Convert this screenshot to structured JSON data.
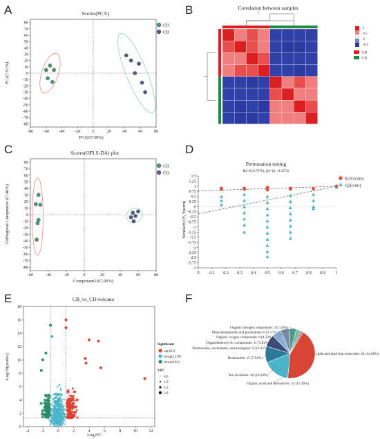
{
  "panel_labels": [
    "A",
    "B",
    "C",
    "D",
    "E",
    "F"
  ],
  "colors": {
    "cd": "#4a9a7a",
    "cb": "#545a8a",
    "ellipse_cd": "#e88a80",
    "ellipse_cb": "#8fd6c4",
    "r2y": "#e0533a",
    "q2": "#4cb6c8",
    "heat_low": "#2a3aa0",
    "heat_high": "#e62b2b",
    "volcano_up": "#d94534",
    "volcano_nosig": "#4ab4c8",
    "volcano_down": "#2a8a6a"
  },
  "chart_data": [
    {
      "type": "scatter",
      "panel": "A",
      "title": "Scores(PCA)",
      "xlabel": "PC1(67.50%)",
      "ylabel": "PC2(7.91%)",
      "xlim": [
        -80,
        80
      ],
      "ylim": [
        -85,
        85
      ],
      "xticks": [
        -80,
        -60,
        -40,
        -20,
        0,
        20,
        40,
        60,
        80
      ],
      "yticks": [
        -80,
        -70,
        -60,
        -50,
        -40,
        -30,
        -20,
        -10,
        0,
        10,
        20,
        30,
        40,
        50,
        60,
        70,
        80
      ],
      "series": [
        {
          "name": "CD",
          "color": "#4a9a7a",
          "points": [
            [
              -60,
              5
            ],
            [
              -55,
              12
            ],
            [
              -50,
              5
            ],
            [
              -58,
              -8
            ],
            [
              -52,
              -14
            ]
          ]
        },
        {
          "name": "CB",
          "color": "#545a8a",
          "points": [
            [
              42,
              28
            ],
            [
              48,
              20
            ],
            [
              58,
              15
            ],
            [
              53,
              0
            ],
            [
              62,
              -15
            ],
            [
              66,
              -30
            ]
          ]
        }
      ]
    },
    {
      "type": "heatmap",
      "panel": "B",
      "title": "Correlation between samples",
      "colorbar_ticks": [
        "1",
        "0.5",
        "0",
        "-0.5"
      ],
      "groups": [
        {
          "name": "CD",
          "color": "#e02020"
        },
        {
          "name": "CB",
          "color": "#208a40"
        }
      ]
    },
    {
      "type": "scatter",
      "panel": "C",
      "title": "Scores(OPLS-DA) plot",
      "xlabel": "Component1(67.00%)",
      "ylabel": "Orthogonal Component1(7.40%)",
      "xlim": [
        -60,
        80
      ],
      "ylim": [
        -85,
        85
      ],
      "xticks": [
        -60,
        -40,
        -20,
        0,
        20,
        40,
        60,
        80
      ],
      "yticks": [
        -80,
        -70,
        -60,
        -50,
        -40,
        -30,
        -20,
        -10,
        0,
        10,
        20,
        30,
        40,
        50,
        60,
        70,
        80
      ],
      "series": [
        {
          "name": "CB",
          "color": "#4a9a7a",
          "points": [
            [
              -51,
              30
            ],
            [
              -54,
              16
            ],
            [
              -49,
              15
            ],
            [
              -51,
              -8
            ],
            [
              -52,
              -13
            ],
            [
              -53,
              -38
            ]
          ]
        },
        {
          "name": "CD",
          "color": "#545a8a",
          "points": [
            [
              54,
              3
            ],
            [
              57,
              -2
            ],
            [
              60,
              5
            ],
            [
              52,
              -4
            ],
            [
              55,
              -10
            ]
          ]
        }
      ]
    },
    {
      "type": "scatter",
      "panel": "D",
      "title": "Permutation testing",
      "subtitle": "R2=(0,0.7676), Q2=(0, -0.3574)",
      "ylabel": "Similarity(Y, Yperm)",
      "xlim": [
        0,
        1
      ],
      "ylim": [
        -3.0,
        1.5
      ],
      "xticks": [
        "0",
        "0.1",
        "0.2",
        "0.3",
        "0.4",
        "0.5",
        "0.6",
        "0.7",
        "0.8",
        "0.9",
        "1"
      ],
      "yticks": [
        "-3",
        "-2.75",
        "-2.5",
        "-2.25",
        "-2",
        "-1.75",
        "-1.5",
        "-1.25",
        "-1",
        "-0.75",
        "-0.5",
        "-0.25",
        "0",
        "0.25",
        "0.5",
        "0.75",
        "1",
        "1.25",
        "1.5"
      ],
      "lines": [
        {
          "name": "R2Y fit",
          "intercept": 0.7676,
          "end": [
            1,
            1.0
          ]
        },
        {
          "name": "Q2 fit",
          "intercept": -0.3574,
          "end": [
            1,
            1.0
          ]
        }
      ],
      "series": [
        {
          "name": "R2Y(cum)",
          "color": "#e0533a",
          "points": [
            [
              0.167,
              0.85
            ],
            [
              0.167,
              0.9
            ],
            [
              0.333,
              0.85
            ],
            [
              0.333,
              0.88
            ],
            [
              0.333,
              0.9
            ],
            [
              0.5,
              0.82
            ],
            [
              0.5,
              0.86
            ],
            [
              0.5,
              0.9
            ],
            [
              0.5,
              0.94
            ],
            [
              0.667,
              0.86
            ],
            [
              0.667,
              0.9
            ],
            [
              0.833,
              0.88
            ],
            [
              1.0,
              1.0
            ]
          ]
        },
        {
          "name": "Q2(cum)",
          "color": "#4cb6c8",
          "points": [
            [
              0.167,
              0.1
            ],
            [
              0.167,
              0.3
            ],
            [
              0.167,
              0.5
            ],
            [
              0.333,
              0.6
            ],
            [
              0.333,
              0.3
            ],
            [
              0.333,
              0.0
            ],
            [
              0.333,
              -0.3
            ],
            [
              0.333,
              -0.6
            ],
            [
              0.333,
              -0.9
            ],
            [
              0.333,
              -1.25
            ],
            [
              0.5,
              0.5
            ],
            [
              0.5,
              0.2
            ],
            [
              0.5,
              -0.1
            ],
            [
              0.5,
              -0.4
            ],
            [
              0.5,
              -0.7
            ],
            [
              0.5,
              -1.0
            ],
            [
              0.5,
              -1.3
            ],
            [
              0.5,
              -1.6
            ],
            [
              0.5,
              -1.9
            ],
            [
              0.5,
              -2.2
            ],
            [
              0.5,
              -2.45
            ],
            [
              0.667,
              0.55
            ],
            [
              0.667,
              0.25
            ],
            [
              0.667,
              -0.05
            ],
            [
              0.667,
              -0.35
            ],
            [
              0.667,
              -0.65
            ],
            [
              0.667,
              -0.95
            ],
            [
              0.667,
              -1.25
            ],
            [
              0.667,
              -1.55
            ],
            [
              0.833,
              0.6
            ],
            [
              0.833,
              0.3
            ],
            [
              0.833,
              0.0
            ],
            [
              0.833,
              -0.1
            ],
            [
              1.0,
              0.95
            ]
          ]
        }
      ]
    },
    {
      "type": "scatter",
      "panel": "E",
      "title": "CB_vs_CD.volcano",
      "xlabel": "Log2FC",
      "ylabel": "-Log10(pvalue)",
      "xlim": [
        -4.5,
        12.5
      ],
      "ylim": [
        0,
        18
      ],
      "xticks": [
        -4,
        -2,
        0,
        2,
        4,
        6,
        8,
        10,
        12
      ],
      "yticks": [
        0,
        2,
        4,
        6,
        8,
        10,
        12,
        14,
        16,
        18
      ],
      "thresholds": {
        "fc": [
          -1,
          1
        ],
        "p": 1.3
      },
      "legend_title": "Significant",
      "legend": [
        {
          "label": "up(161)",
          "color": "#d94534"
        },
        {
          "label": "nosig(1219)",
          "color": "#4ab4c8"
        },
        {
          "label": "down(103)",
          "color": "#2a8a6a"
        }
      ],
      "vip_title": "VIP",
      "vip_levels": [
        "0.0",
        "1.0",
        "2.0",
        "3.0"
      ],
      "highlight_points": [
        [
          1.0,
          16.0
        ],
        [
          1.0,
          14.8
        ],
        [
          4.0,
          13.0
        ],
        [
          5.2,
          12.8
        ],
        [
          11.2,
          7.2
        ],
        [
          5.5,
          8.8
        ],
        [
          3.5,
          10.2
        ],
        [
          3.6,
          9.5
        ],
        [
          -1.0,
          15.2
        ],
        [
          -0.8,
          13.5
        ],
        [
          -2.0,
          10.0
        ],
        [
          -1.6,
          11.0
        ],
        [
          -2.2,
          8.4
        ]
      ]
    },
    {
      "type": "pie",
      "panel": "F",
      "labels": [
        "Lipids and lipid-like molecules: 81 (42.86%)",
        "Organic acids and derivatives: 33 (17.46%)",
        "Not Available: 20 (10.58%)",
        "Benzenoids: 15 (7.94%)",
        "Nucleosides, nucleotides, and analogues: 12 (6.35%)",
        "Organoheterocyclic compounds: 11 (5.82%)",
        "Organic oxygen compounds: 8 (4.23%)",
        "Phenylpropanoids and polyketides: 6 (3.17%)",
        "Organic nitrogen compounds: 3 (1.59%)"
      ],
      "values": [
        81,
        33,
        20,
        15,
        12,
        11,
        8,
        6,
        3
      ],
      "colors": [
        "#d94534",
        "#4ab4c8",
        "#2a7a9a",
        "#3a4a7a",
        "#8ab0d8",
        "#7a8aa8",
        "#4a9a88",
        "#7ab8a0",
        "#b07a8a"
      ]
    }
  ]
}
